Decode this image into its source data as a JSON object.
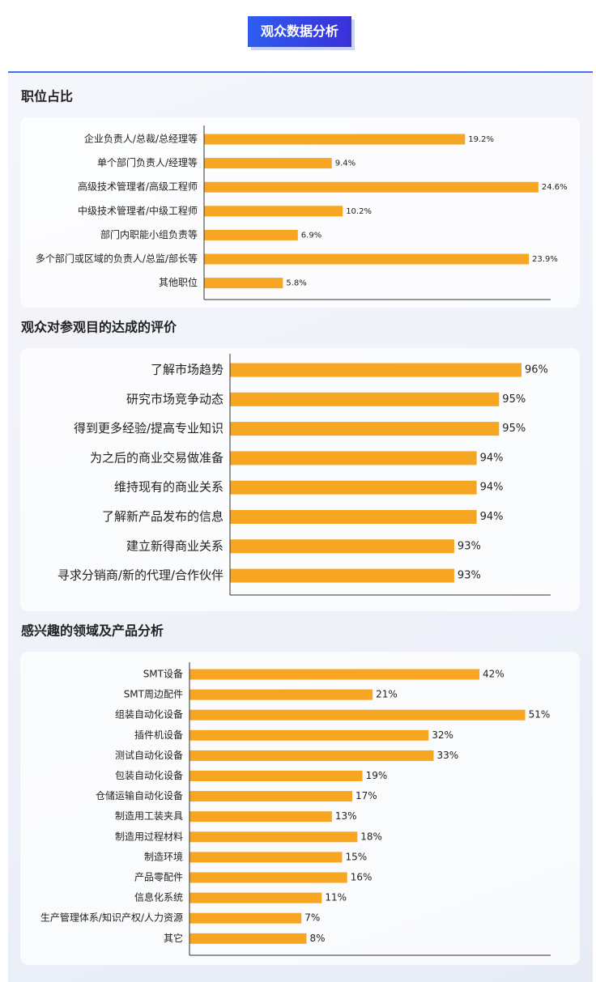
{
  "header": {
    "title": "观众数据分析"
  },
  "chart_data": [
    {
      "type": "bar",
      "orientation": "horizontal",
      "title": "职位占比",
      "color": "#f6a623",
      "categories": [
        "企业负责人/总裁/总经理等",
        "单个部门负责人/经理等",
        "高级技术管理者/高级工程师",
        "中级技术管理者/中级工程师",
        "部门内职能小组负责等",
        "多个部门或区域的负责人/总监/部长等",
        "其他职位"
      ],
      "values": [
        19.2,
        9.4,
        24.6,
        10.2,
        6.9,
        23.9,
        5.8
      ],
      "value_labels": [
        "19.2%",
        "9.4%",
        "24.6%",
        "10.2%",
        "6.9%",
        "23.9%",
        "5.8%"
      ],
      "xlim": [
        0,
        25.5
      ]
    },
    {
      "type": "bar",
      "orientation": "horizontal",
      "title": "观众对参观目的达成的评价",
      "color": "#f6a623",
      "categories": [
        "了解市场趋势",
        "研究市场竞争动态",
        "得到更多经验/提高专业知识",
        "为之后的商业交易做准备",
        "维持现有的商业关系",
        "了解新产品发布的信息",
        "建立新得商业关系",
        "寻求分销商/新的代理/合作伙伴"
      ],
      "values": [
        96,
        95,
        95,
        94,
        94,
        94,
        93,
        93
      ],
      "value_labels": [
        "96%",
        "95%",
        "95%",
        "94%",
        "94%",
        "94%",
        "93%",
        "93%"
      ],
      "xlim": [
        83,
        97.3
      ]
    },
    {
      "type": "bar",
      "orientation": "horizontal",
      "title": "感兴趣的领域及产品分析",
      "color": "#f6a623",
      "categories": [
        "SMT设备",
        "SMT周边配件",
        "组装自动化设备",
        "插件机设备",
        "测试自动化设备",
        "包装自动化设备",
        "仓储运输自动化设备",
        "制造用工装夹具",
        "制造用过程材料",
        "制造环境",
        "产品零配件",
        "信息化系统",
        "生产管理体系/知识产权/人力资源",
        "其它"
      ],
      "values": [
        42,
        21,
        51,
        32,
        33,
        19,
        17,
        13,
        18,
        15,
        16,
        11,
        7,
        8
      ],
      "value_labels": [
        "42%",
        "21%",
        "51%",
        "32%",
        "33%",
        "19%",
        "17%",
        "13%",
        "18%",
        "15%",
        "16%",
        "11%",
        "7%",
        "8%"
      ],
      "xlim": [
        -15,
        56
      ]
    }
  ]
}
